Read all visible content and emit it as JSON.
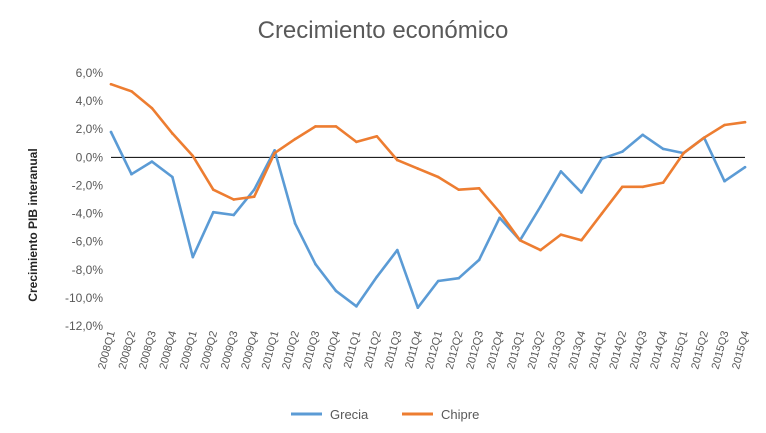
{
  "chart_data": {
    "type": "line",
    "title": "Crecimiento económico",
    "xlabel": "",
    "ylabel": "Crecimiento PIB interanual",
    "ylim": [
      -12,
      6
    ],
    "ytick_step": 2,
    "ytick_labels": [
      "6,0%",
      "4,0%",
      "2,0%",
      "0,0%",
      "-2,0%",
      "-4,0%",
      "-6,0%",
      "-8,0%",
      "-10,0%",
      "-12,0%"
    ],
    "grid": false,
    "legend_position": "bottom",
    "categories": [
      "2008Q1",
      "2008Q2",
      "2008Q3",
      "2008Q4",
      "2009Q1",
      "2009Q2",
      "2009Q3",
      "2009Q4",
      "2010Q1",
      "2010Q2",
      "2010Q3",
      "2010Q4",
      "2011Q1",
      "2011Q2",
      "2011Q3",
      "2011Q4",
      "2012Q1",
      "2012Q2",
      "2012Q3",
      "2012Q4",
      "2013Q1",
      "2013Q2",
      "2013Q3",
      "2013Q4",
      "2014Q1",
      "2014Q2",
      "2014Q3",
      "2014Q4",
      "2015Q1",
      "2015Q2",
      "2015Q3",
      "2015Q4"
    ],
    "series": [
      {
        "name": "Grecia",
        "color": "#5B9BD5",
        "values": [
          1.8,
          -1.2,
          -0.3,
          -1.4,
          -7.1,
          -3.9,
          -4.1,
          -2.3,
          0.5,
          -4.7,
          -7.6,
          -9.5,
          -10.6,
          -8.5,
          -6.6,
          -10.7,
          -8.8,
          -8.6,
          -7.3,
          -4.3,
          -5.9,
          -3.5,
          -1.0,
          -2.5,
          -0.1,
          0.4,
          1.6,
          0.6,
          0.3,
          1.4,
          -1.7,
          -0.7
        ]
      },
      {
        "name": "Chipre",
        "color": "#ED7D31",
        "values": [
          5.2,
          4.7,
          3.5,
          1.7,
          0.1,
          -2.3,
          -3.0,
          -2.8,
          0.3,
          1.3,
          2.2,
          2.2,
          1.1,
          1.5,
          -0.2,
          -0.8,
          -1.4,
          -2.3,
          -2.2,
          -3.9,
          -5.9,
          -6.6,
          -5.5,
          -5.9,
          -4.0,
          -2.1,
          -2.1,
          -1.8,
          0.3,
          1.4,
          2.3,
          2.5
        ]
      }
    ]
  }
}
